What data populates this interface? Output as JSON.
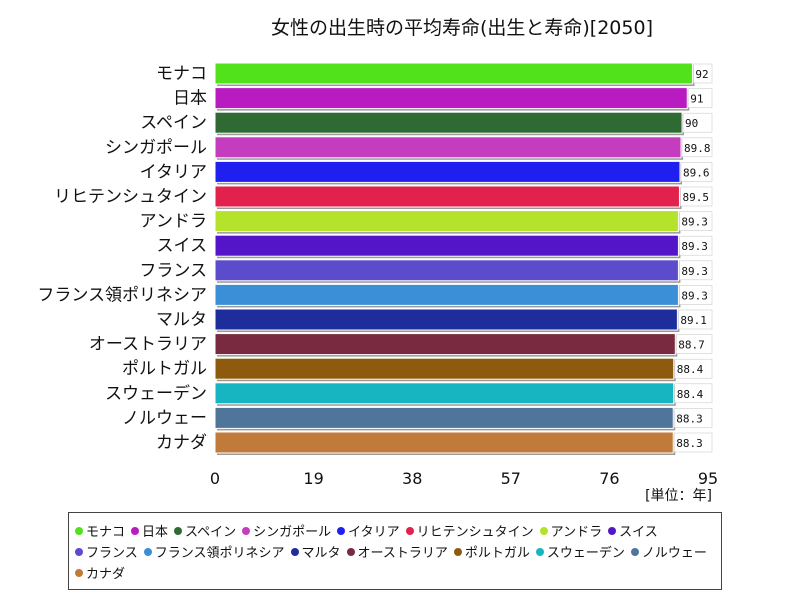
{
  "chart_data": {
    "type": "bar",
    "orientation": "horizontal",
    "title": "女性の出生時の平均寿命(出生と寿命)[2050]",
    "unit_label": "[単位：年]",
    "xlim": [
      0,
      95
    ],
    "x_ticks": [
      "0",
      "19",
      "38",
      "57",
      "76",
      "95"
    ],
    "legend_position": "bottom",
    "grid": false,
    "categories": [
      "モナコ",
      "日本",
      "スペイン",
      "シンガポール",
      "イタリア",
      "リヒテンシュタイン",
      "アンドラ",
      "スイス",
      "フランス",
      "フランス領ポリネシア",
      "マルタ",
      "オーストラリア",
      "ポルトガル",
      "スウェーデン",
      "ノルウェー",
      "カナダ"
    ],
    "values": [
      92,
      91,
      90,
      89.8,
      89.6,
      89.5,
      89.3,
      89.3,
      89.3,
      89.3,
      89.1,
      88.7,
      88.4,
      88.4,
      88.3,
      88.3
    ],
    "value_labels": [
      "92",
      "91",
      "90",
      "89.8",
      "89.6",
      "89.5",
      "89.3",
      "89.3",
      "89.3",
      "89.3",
      "89.1",
      "88.7",
      "88.4",
      "88.4",
      "88.3",
      "88.3"
    ],
    "colors": [
      "#52e21c",
      "#b81bbf",
      "#2e6a32",
      "#c43dbf",
      "#1f1ff0",
      "#e2224c",
      "#b5e22a",
      "#5414c8",
      "#5b4ccc",
      "#3a8fd6",
      "#1e2c9c",
      "#7a2a40",
      "#8e5a0e",
      "#17b5c2",
      "#4f769a",
      "#c07a3a"
    ]
  }
}
